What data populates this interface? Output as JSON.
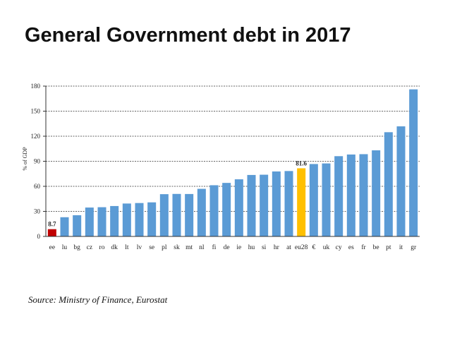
{
  "title": "General Government debt in 2017",
  "source": "Source: Ministry of Finance, Eurostat",
  "colors": {
    "default_bar": "#5b9bd5",
    "highlight_lowest": "#c00000",
    "highlight_eu28": "#ffc000"
  },
  "chart_data": {
    "type": "bar",
    "title": "General Government debt in 2017",
    "xlabel": "",
    "ylabel": "% of GDP",
    "ylim": [
      0,
      180
    ],
    "yticks": [
      0,
      30,
      60,
      90,
      120,
      150,
      180
    ],
    "grid": true,
    "categories": [
      "ee",
      "lu",
      "bg",
      "cz",
      "ro",
      "dk",
      "lt",
      "lv",
      "se",
      "pl",
      "sk",
      "mt",
      "nl",
      "fi",
      "de",
      "ie",
      "hu",
      "si",
      "hr",
      "at",
      "eu28",
      "€",
      "uk",
      "cy",
      "es",
      "fr",
      "be",
      "pt",
      "it",
      "gr"
    ],
    "values": [
      8.7,
      23,
      25.4,
      34.6,
      35,
      36.4,
      39.4,
      40,
      40.8,
      50.6,
      50.9,
      50.8,
      57,
      61.3,
      64.1,
      68.4,
      73.6,
      73.9,
      77.8,
      78.3,
      81.6,
      86.7,
      87.4,
      96.1,
      98.1,
      98.5,
      103.1,
      124.8,
      131.8,
      176.1
    ],
    "highlights": {
      "ee": "highlight_lowest",
      "eu28": "highlight_eu28"
    },
    "data_labels": {
      "ee": "8.7",
      "eu28": "81.6"
    }
  }
}
